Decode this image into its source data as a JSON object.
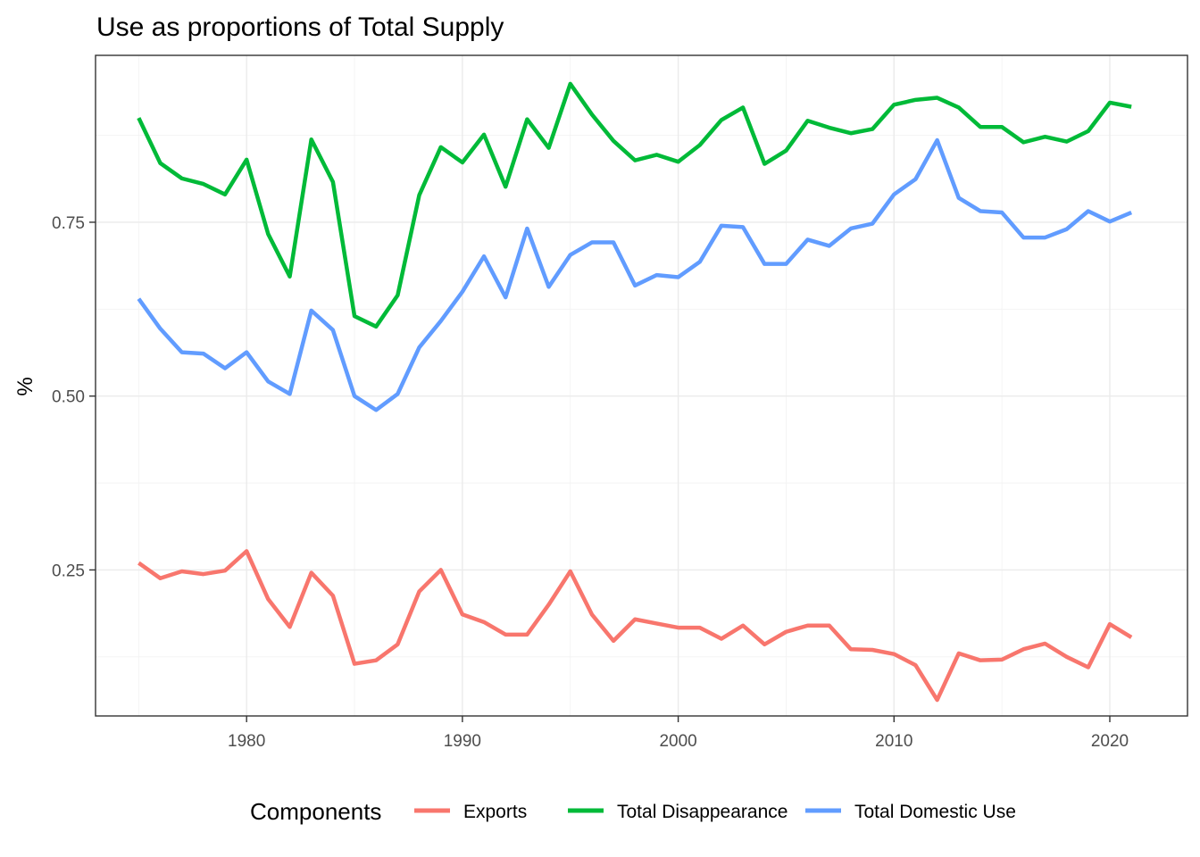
{
  "chart_data": {
    "type": "line",
    "title": "Use as proportions of Total Supply",
    "xlabel": "",
    "ylabel": "%",
    "xlim": [
      1973,
      2023.6
    ],
    "ylim": [
      0.04,
      0.99
    ],
    "x_ticks": [
      1980,
      1990,
      2000,
      2010,
      2020
    ],
    "x_tick_labels": [
      "1980",
      "1990",
      "2000",
      "2010",
      "2020"
    ],
    "y_ticks": [
      0.25,
      0.5,
      0.75
    ],
    "y_tick_labels": [
      "0.25",
      "0.50",
      "0.75"
    ],
    "grid": true,
    "legend": {
      "title": "Components",
      "position": "bottom"
    },
    "x": [
      1975,
      1976,
      1977,
      1978,
      1979,
      1980,
      1981,
      1982,
      1983,
      1984,
      1985,
      1986,
      1987,
      1988,
      1989,
      1990,
      1991,
      1992,
      1993,
      1994,
      1995,
      1996,
      1997,
      1998,
      1999,
      2000,
      2001,
      2002,
      2003,
      2004,
      2005,
      2006,
      2007,
      2008,
      2009,
      2010,
      2011,
      2012,
      2013,
      2014,
      2015,
      2016,
      2017,
      2018,
      2019,
      2020,
      2021
    ],
    "series": [
      {
        "name": "Exports",
        "color": "#F8766D",
        "values": [
          0.26,
          0.238,
          0.248,
          0.244,
          0.249,
          0.277,
          0.208,
          0.168,
          0.246,
          0.213,
          0.115,
          0.12,
          0.143,
          0.219,
          0.25,
          0.186,
          0.175,
          0.157,
          0.157,
          0.2,
          0.248,
          0.186,
          0.148,
          0.179,
          0.173,
          0.167,
          0.167,
          0.151,
          0.17,
          0.143,
          0.161,
          0.17,
          0.17,
          0.136,
          0.135,
          0.129,
          0.113,
          0.063,
          0.13,
          0.12,
          0.121,
          0.136,
          0.144,
          0.125,
          0.11,
          0.172,
          0.153
        ]
      },
      {
        "name": "Total Disappearance",
        "color": "#00BA38",
        "values": [
          0.9,
          0.835,
          0.813,
          0.805,
          0.79,
          0.84,
          0.733,
          0.672,
          0.869,
          0.808,
          0.615,
          0.6,
          0.645,
          0.789,
          0.858,
          0.836,
          0.876,
          0.801,
          0.898,
          0.857,
          0.949,
          0.905,
          0.867,
          0.839,
          0.847,
          0.837,
          0.861,
          0.897,
          0.915,
          0.834,
          0.853,
          0.896,
          0.886,
          0.878,
          0.884,
          0.919,
          0.926,
          0.929,
          0.915,
          0.887,
          0.887,
          0.865,
          0.873,
          0.866,
          0.881,
          0.922,
          0.916
        ]
      },
      {
        "name": "Total Domestic Use",
        "color": "#619CFF",
        "values": [
          0.64,
          0.597,
          0.563,
          0.561,
          0.54,
          0.563,
          0.521,
          0.503,
          0.623,
          0.595,
          0.5,
          0.48,
          0.503,
          0.57,
          0.608,
          0.65,
          0.701,
          0.642,
          0.741,
          0.657,
          0.703,
          0.721,
          0.721,
          0.659,
          0.674,
          0.671,
          0.693,
          0.745,
          0.743,
          0.69,
          0.69,
          0.725,
          0.716,
          0.741,
          0.748,
          0.79,
          0.812,
          0.868,
          0.785,
          0.766,
          0.764,
          0.728,
          0.728,
          0.74,
          0.766,
          0.751,
          0.764
        ]
      }
    ]
  }
}
